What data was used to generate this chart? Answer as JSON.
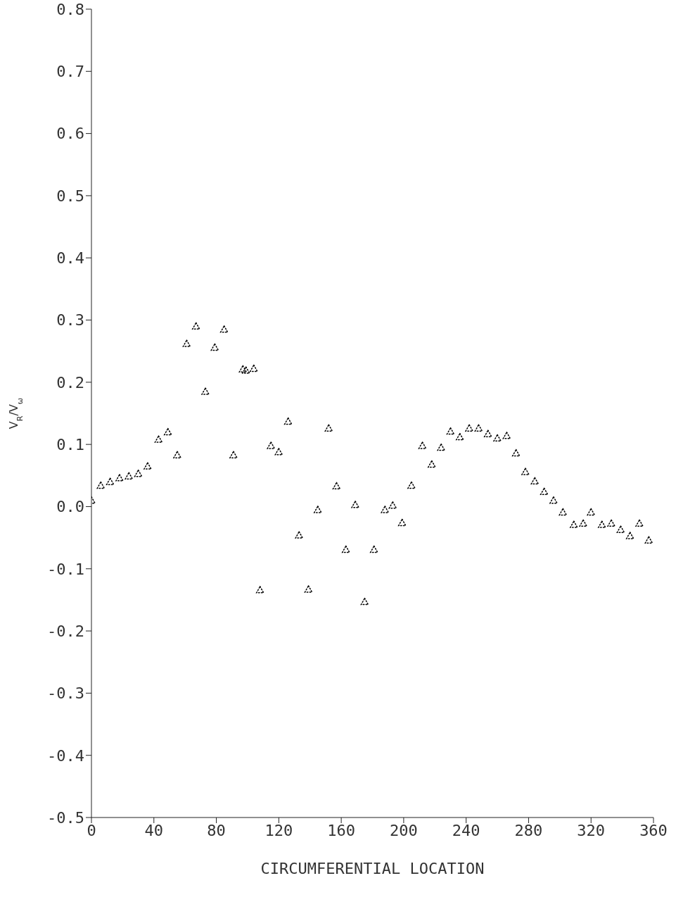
{
  "chart_data": {
    "type": "scatter",
    "xlabel": "CIRCUMFERENTIAL LOCATION",
    "ylabel": "V$_{R}$/V$_{ω}$",
    "x": [
      0,
      6,
      12,
      18,
      24,
      30,
      36,
      43,
      49,
      55,
      61,
      67,
      73,
      79,
      85,
      91,
      97,
      99,
      104,
      108,
      115,
      120,
      126,
      133,
      139,
      145,
      152,
      157,
      163,
      169,
      175,
      181,
      188,
      193,
      199,
      205,
      212,
      218,
      224,
      230,
      236,
      242,
      248,
      254,
      260,
      266,
      272,
      278,
      284,
      290,
      296,
      302,
      309,
      315,
      320,
      327,
      333,
      339,
      345,
      351,
      357
    ],
    "series": [
      {
        "color": "#000000",
        "marker": "triangle",
        "values": [
          0.01,
          0.034,
          0.04,
          0.046,
          0.049,
          0.053,
          0.065,
          0.108,
          0.12,
          0.083,
          0.262,
          0.29,
          0.185,
          0.256,
          0.285,
          0.083,
          0.221,
          0.219,
          0.222,
          -0.134,
          0.098,
          0.088,
          0.137,
          -0.046,
          -0.133,
          -0.005,
          0.126,
          0.033,
          -0.069,
          0.003,
          -0.153,
          -0.069,
          -0.005,
          0.002,
          -0.026,
          0.034,
          0.098,
          0.068,
          0.095,
          0.121,
          0.112,
          0.126,
          0.126,
          0.117,
          0.11,
          0.114,
          0.086,
          0.056,
          0.041,
          0.024,
          0.01,
          -0.009,
          -0.029,
          -0.027,
          -0.009,
          -0.029,
          -0.027,
          -0.037,
          -0.047,
          -0.027,
          -0.054
        ]
      }
    ],
    "xlim": [
      0,
      360
    ],
    "xticks": [
      0,
      40,
      80,
      120,
      160,
      200,
      240,
      280,
      320,
      360
    ],
    "ylim": [
      -0.5,
      0.8
    ],
    "yticks": [
      -0.5,
      -0.4,
      -0.3,
      -0.2,
      -0.1,
      {
        "value": 0,
        "label": "0.0"
      },
      0.1,
      0.2,
      0.3,
      0.4,
      0.5,
      0.6,
      0.7,
      0.8
    ],
    "grid": false,
    "legend": false
  }
}
